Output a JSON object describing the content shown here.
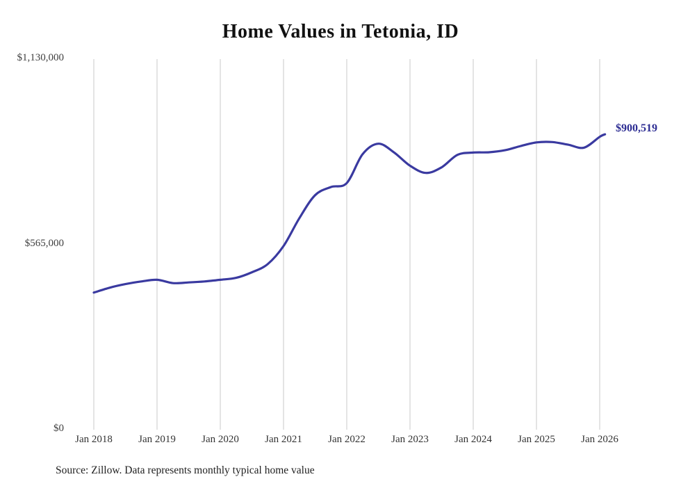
{
  "title": "Home Values in Tetonia, ID",
  "source_note": "Source: Zillow. Data represents monthly typical home value",
  "chart_data": {
    "type": "line",
    "title": "Home Values in Tetonia, ID",
    "series_name": "Monthly typical home value",
    "end_label": "$900,519",
    "final_value": 900519,
    "line_color": "#3a3aa0",
    "grid_color": "#c9c9c9",
    "grid": "vertical-only",
    "legend": "none",
    "ylim": [
      0,
      1130000
    ],
    "y_ticks": [
      {
        "label": "$1,130,000",
        "value": 1130000
      },
      {
        "label": "$565,000",
        "value": 565000
      },
      {
        "label": "$0",
        "value": 0
      }
    ],
    "x_ticks": [
      "Jan 2018",
      "Jan 2019",
      "Jan 2020",
      "Jan 2021",
      "Jan 2022",
      "Jan 2023",
      "Jan 2024",
      "Jan 2025",
      "Jan 2026"
    ],
    "x": [
      "2018-01",
      "2018-04",
      "2018-07",
      "2018-10",
      "2019-01",
      "2019-04",
      "2019-07",
      "2019-10",
      "2020-01",
      "2020-04",
      "2020-07",
      "2020-10",
      "2021-01",
      "2021-04",
      "2021-07",
      "2021-10",
      "2022-01",
      "2022-04",
      "2022-07",
      "2022-10",
      "2023-01",
      "2023-04",
      "2023-07",
      "2023-10",
      "2024-01",
      "2024-04",
      "2024-07",
      "2024-10",
      "2025-01",
      "2025-04",
      "2025-07",
      "2025-10",
      "2026-01",
      "2026-02"
    ],
    "values": [
      418000,
      433000,
      444000,
      452000,
      457000,
      447000,
      449000,
      452000,
      457000,
      463000,
      480000,
      505000,
      560000,
      645000,
      715000,
      740000,
      752000,
      840000,
      872000,
      845000,
      805000,
      783000,
      800000,
      838000,
      845000,
      846000,
      852000,
      865000,
      876000,
      877000,
      869000,
      860000,
      893000,
      900519
    ]
  }
}
